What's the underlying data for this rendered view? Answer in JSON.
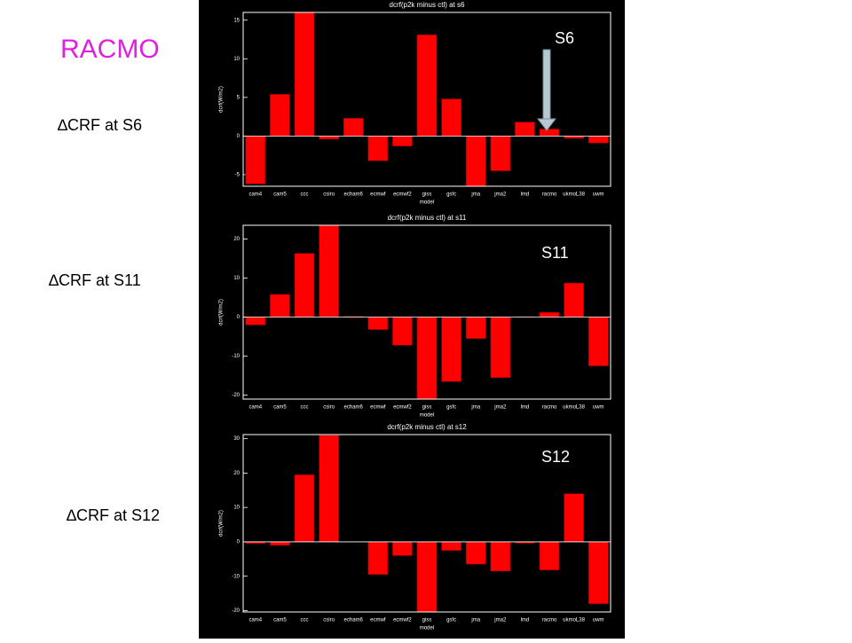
{
  "slide_title": "RACMO",
  "chart_data": [
    {
      "type": "bar",
      "title": "dcrf(p2k minus ctl) at s6",
      "xlabel": "model",
      "ylabel": "dcrf(W/m2)",
      "label": "∆CRF at S6",
      "annotation": "S6",
      "categories": [
        "cam4",
        "cam5",
        "ccc",
        "csiro",
        "echam6",
        "ecmwf",
        "ecmwf2",
        "giss",
        "gsfc",
        "jma",
        "jma2",
        "lmd",
        "racmo",
        "ukmoL38",
        "uwm"
      ],
      "values": [
        -6.2,
        5.4,
        16,
        -0.4,
        2.3,
        -3.2,
        -1.3,
        13.1,
        4.8,
        -6.5,
        -4.5,
        1.8,
        0.9,
        -0.3,
        -0.9
      ],
      "color": "#ff0000",
      "ylim": [
        -6.5,
        16
      ],
      "yticks": [
        -5,
        0,
        5,
        10,
        15
      ]
    },
    {
      "type": "bar",
      "title": "dcrf(p2k minus ctl) at s11",
      "xlabel": "model",
      "ylabel": "dcrf(W/m2)",
      "label": "∆CRF at S11",
      "annotation": "S11",
      "categories": [
        "cam4",
        "cam5",
        "ccc",
        "csiro",
        "echam6",
        "ecmwf",
        "ecmwf2",
        "giss",
        "gsfc",
        "jma",
        "jma2",
        "lmd",
        "racmo",
        "ukmoL38",
        "uwm"
      ],
      "values": [
        -2,
        5.8,
        16.3,
        23.5,
        0.2,
        -3.2,
        -7.2,
        -21,
        -16.5,
        -5.5,
        -15.5,
        0.1,
        1.2,
        8.7,
        -12.5
      ],
      "color": "#ff0000",
      "ylim": [
        -21,
        23.5
      ],
      "yticks": [
        -20,
        -10,
        0,
        10,
        20
      ]
    },
    {
      "type": "bar",
      "title": "dcrf(p2k minus ctl) at s12",
      "xlabel": "model",
      "ylabel": "dcrf(W/m2)",
      "label": "∆CRF at S12",
      "annotation": "S12",
      "categories": [
        "cam4",
        "cam5",
        "ccc",
        "csiro",
        "echam6",
        "ecmwf",
        "ecmwf2",
        "giss",
        "gsfc",
        "jma",
        "jma2",
        "lmd",
        "racmo",
        "ukmoL38",
        "uwm"
      ],
      "values": [
        -0.5,
        -1,
        19.5,
        31,
        0,
        -9.5,
        -4,
        -20.4,
        -2.5,
        -6.5,
        -8.5,
        -0.4,
        -8.2,
        14,
        -18
      ],
      "color": "#ff0000",
      "ylim": [
        -20.4,
        31.2
      ],
      "yticks": [
        -20,
        -10,
        0,
        10,
        20,
        30
      ]
    }
  ]
}
